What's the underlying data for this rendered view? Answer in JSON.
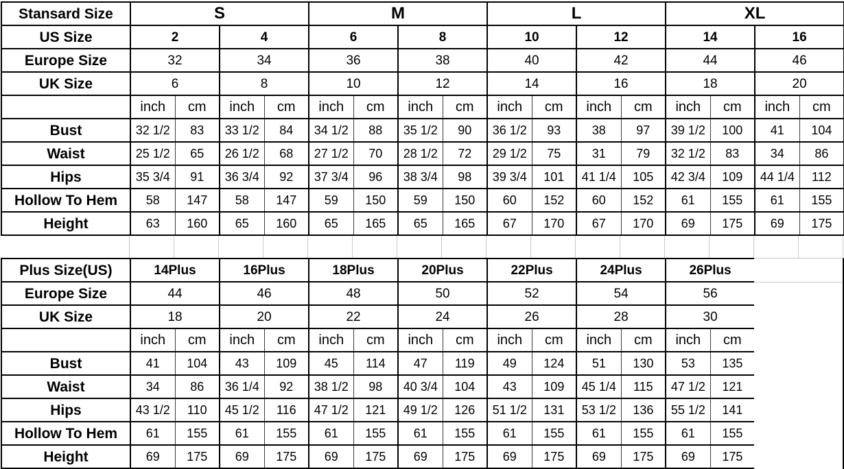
{
  "colors": {
    "background": "#ffffff",
    "text": "#000000",
    "border_strong": "#000000",
    "border_thin": "#3a3a3a",
    "grid_faint": "#c9c9c9"
  },
  "chart_data": [
    {
      "type": "table",
      "name": "standard-size-chart",
      "label_col_title": "Stansard Size",
      "us_row_label": "US Size",
      "europe_row_label": "Europe Size",
      "uk_row_label": "UK Size",
      "unit_headers": [
        "inch",
        "cm"
      ],
      "size_groups": [
        {
          "name": "S",
          "us_sizes": [
            "2",
            "4"
          ]
        },
        {
          "name": "M",
          "us_sizes": [
            "6",
            "8"
          ]
        },
        {
          "name": "L",
          "us_sizes": [
            "10",
            "12"
          ]
        },
        {
          "name": "XL",
          "us_sizes": [
            "14",
            "16"
          ]
        }
      ],
      "europe_sizes": [
        "32",
        "34",
        "36",
        "38",
        "40",
        "42",
        "44",
        "46"
      ],
      "uk_sizes": [
        "6",
        "8",
        "10",
        "12",
        "14",
        "16",
        "18",
        "20"
      ],
      "measurements": [
        {
          "label": "Bust",
          "values_inch_cm": [
            [
              "32 1/2",
              "83"
            ],
            [
              "33 1/2",
              "84"
            ],
            [
              "34 1/2",
              "88"
            ],
            [
              "35 1/2",
              "90"
            ],
            [
              "36 1/2",
              "93"
            ],
            [
              "38",
              "97"
            ],
            [
              "39 1/2",
              "100"
            ],
            [
              "41",
              "104"
            ]
          ]
        },
        {
          "label": "Waist",
          "values_inch_cm": [
            [
              "25 1/2",
              "65"
            ],
            [
              "26 1/2",
              "68"
            ],
            [
              "27 1/2",
              "70"
            ],
            [
              "28 1/2",
              "72"
            ],
            [
              "29 1/2",
              "75"
            ],
            [
              "31",
              "79"
            ],
            [
              "32 1/2",
              "83"
            ],
            [
              "34",
              "86"
            ]
          ]
        },
        {
          "label": "Hips",
          "values_inch_cm": [
            [
              "35 3/4",
              "91"
            ],
            [
              "36 3/4",
              "92"
            ],
            [
              "37 3/4",
              "96"
            ],
            [
              "38 3/4",
              "98"
            ],
            [
              "39 3/4",
              "101"
            ],
            [
              "41 1/4",
              "105"
            ],
            [
              "42 3/4",
              "109"
            ],
            [
              "44 1/4",
              "112"
            ]
          ]
        },
        {
          "label": "Hollow To Hem",
          "values_inch_cm": [
            [
              "58",
              "147"
            ],
            [
              "58",
              "147"
            ],
            [
              "59",
              "150"
            ],
            [
              "59",
              "150"
            ],
            [
              "60",
              "152"
            ],
            [
              "60",
              "152"
            ],
            [
              "61",
              "155"
            ],
            [
              "61",
              "155"
            ]
          ]
        },
        {
          "label": "Height",
          "values_inch_cm": [
            [
              "63",
              "160"
            ],
            [
              "65",
              "160"
            ],
            [
              "65",
              "165"
            ],
            [
              "65",
              "165"
            ],
            [
              "67",
              "170"
            ],
            [
              "67",
              "170"
            ],
            [
              "69",
              "175"
            ],
            [
              "69",
              "175"
            ]
          ]
        }
      ]
    },
    {
      "type": "table",
      "name": "plus-size-chart",
      "label_col_title": "Plus Size(US)",
      "europe_row_label": "Europe Size",
      "uk_row_label": "UK Size",
      "unit_headers": [
        "inch",
        "cm"
      ],
      "size_groups": [
        {
          "name": "14Plus"
        },
        {
          "name": "16Plus"
        },
        {
          "name": "18Plus"
        },
        {
          "name": "20Plus"
        },
        {
          "name": "22Plus"
        },
        {
          "name": "24Plus"
        },
        {
          "name": "26Plus"
        }
      ],
      "europe_sizes": [
        "44",
        "46",
        "48",
        "50",
        "52",
        "54",
        "56"
      ],
      "uk_sizes": [
        "18",
        "20",
        "22",
        "24",
        "26",
        "28",
        "30"
      ],
      "measurements": [
        {
          "label": "Bust",
          "values_inch_cm": [
            [
              "41",
              "104"
            ],
            [
              "43",
              "109"
            ],
            [
              "45",
              "114"
            ],
            [
              "47",
              "119"
            ],
            [
              "49",
              "124"
            ],
            [
              "51",
              "130"
            ],
            [
              "53",
              "135"
            ]
          ]
        },
        {
          "label": "Waist",
          "values_inch_cm": [
            [
              "34",
              "86"
            ],
            [
              "36 1/4",
              "92"
            ],
            [
              "38 1/2",
              "98"
            ],
            [
              "40 3/4",
              "104"
            ],
            [
              "43",
              "109"
            ],
            [
              "45 1/4",
              "115"
            ],
            [
              "47 1/2",
              "121"
            ]
          ]
        },
        {
          "label": "Hips",
          "values_inch_cm": [
            [
              "43 1/2",
              "110"
            ],
            [
              "45 1/2",
              "116"
            ],
            [
              "47 1/2",
              "121"
            ],
            [
              "49 1/2",
              "126"
            ],
            [
              "51 1/2",
              "131"
            ],
            [
              "53 1/2",
              "136"
            ],
            [
              "55 1/2",
              "141"
            ]
          ]
        },
        {
          "label": "Hollow To Hem",
          "values_inch_cm": [
            [
              "61",
              "155"
            ],
            [
              "61",
              "155"
            ],
            [
              "61",
              "155"
            ],
            [
              "61",
              "155"
            ],
            [
              "61",
              "155"
            ],
            [
              "61",
              "155"
            ],
            [
              "61",
              "155"
            ]
          ]
        },
        {
          "label": "Height",
          "values_inch_cm": [
            [
              "69",
              "175"
            ],
            [
              "69",
              "175"
            ],
            [
              "69",
              "175"
            ],
            [
              "69",
              "175"
            ],
            [
              "69",
              "175"
            ],
            [
              "69",
              "175"
            ],
            [
              "69",
              "175"
            ]
          ]
        }
      ]
    }
  ]
}
